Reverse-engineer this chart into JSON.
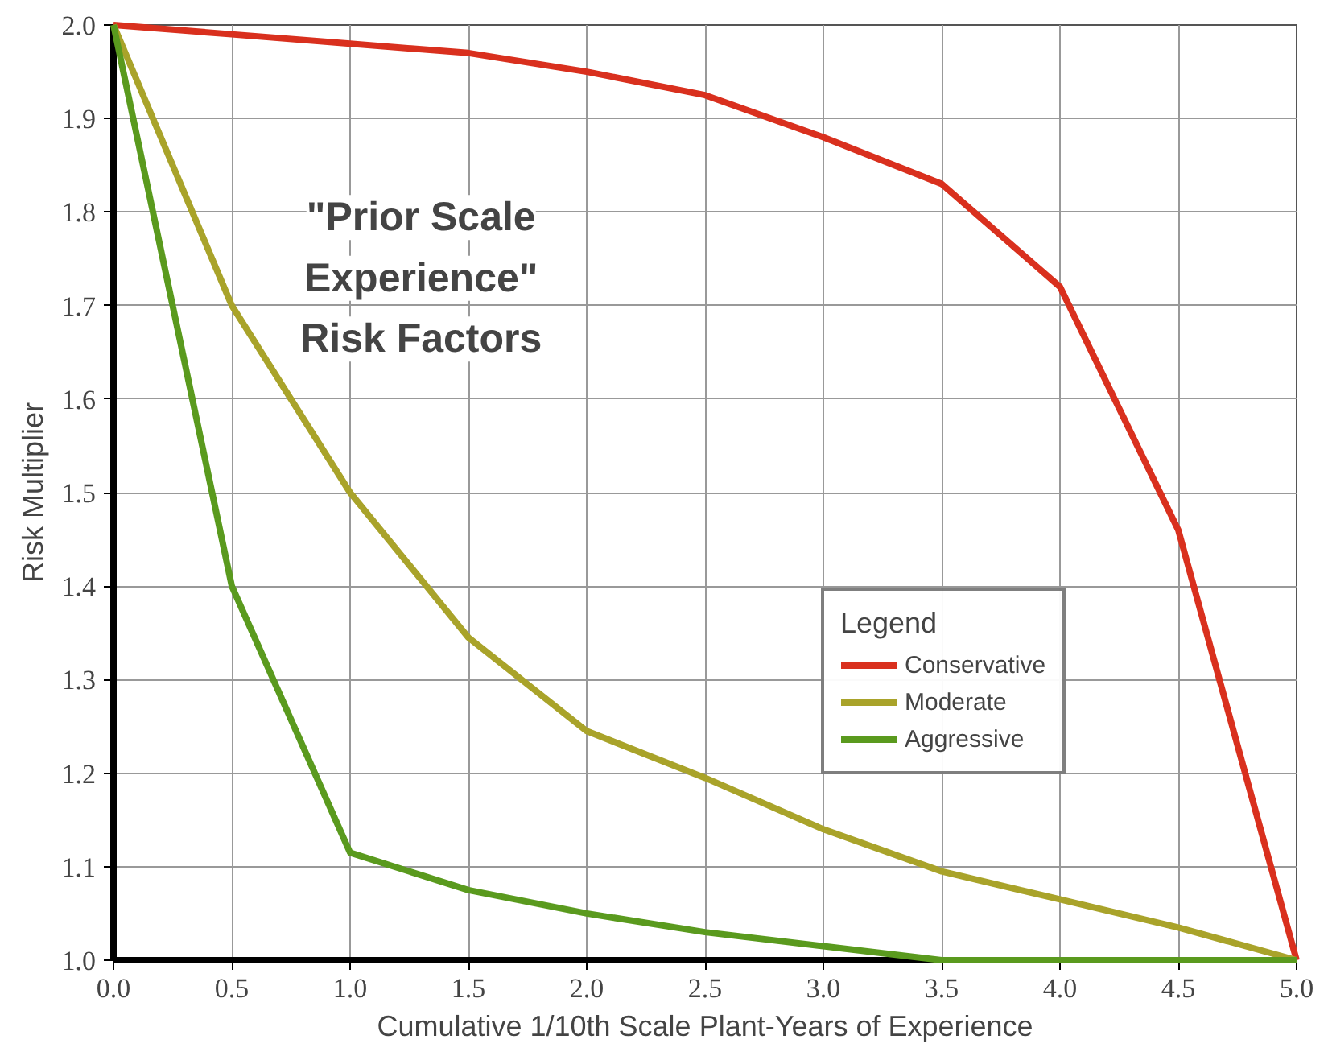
{
  "chart_data": {
    "type": "line",
    "title": "\"Prior Scale Experience\" Risk Factors",
    "xlabel": "Cumulative 1/10th Scale Plant-Years of Experience",
    "ylabel": "Risk Multiplier",
    "legend_title": "Legend",
    "x": [
      0,
      0.5,
      1,
      1.5,
      2,
      2.5,
      3,
      3.5,
      4,
      4.5,
      5
    ],
    "series": [
      {
        "name": "Conservative",
        "color": "#d9301e",
        "values": [
          2.0,
          1.99,
          1.98,
          1.97,
          1.95,
          1.925,
          1.88,
          1.83,
          1.72,
          1.46,
          1.0
        ]
      },
      {
        "name": "Moderate",
        "color": "#a9a32a",
        "values": [
          2.0,
          1.7,
          1.5,
          1.345,
          1.245,
          1.195,
          1.14,
          1.095,
          1.065,
          1.035,
          1.0
        ]
      },
      {
        "name": "Aggressive",
        "color": "#5a9a1e",
        "values": [
          2.0,
          1.4,
          1.115,
          1.075,
          1.05,
          1.03,
          1.015,
          1.0,
          1.0,
          1.0,
          1.0
        ]
      }
    ],
    "xlim": [
      0,
      5
    ],
    "ylim": [
      1.0,
      2.0
    ],
    "xticks": [
      {
        "value": 0,
        "label": "0.0"
      },
      {
        "value": 0.5,
        "label": "0.5"
      },
      {
        "value": 1,
        "label": "1.0"
      },
      {
        "value": 1.5,
        "label": "1.5"
      },
      {
        "value": 2,
        "label": "2.0"
      },
      {
        "value": 2.5,
        "label": "2.5"
      },
      {
        "value": 3,
        "label": "3.0"
      },
      {
        "value": 3.5,
        "label": "3.5"
      },
      {
        "value": 4,
        "label": "4.0"
      },
      {
        "value": 4.5,
        "label": "4.5"
      },
      {
        "value": 5,
        "label": "5.0"
      }
    ],
    "yticks": [
      {
        "value": 1.0,
        "label": "1.0"
      },
      1.1,
      1.2,
      1.3,
      1.4,
      1.5,
      1.6,
      1.7,
      1.8,
      1.9,
      {
        "value": 2.0,
        "label": "2.0"
      }
    ],
    "grid": true,
    "legend": "right",
    "marker": "none",
    "line_style": "solid"
  }
}
